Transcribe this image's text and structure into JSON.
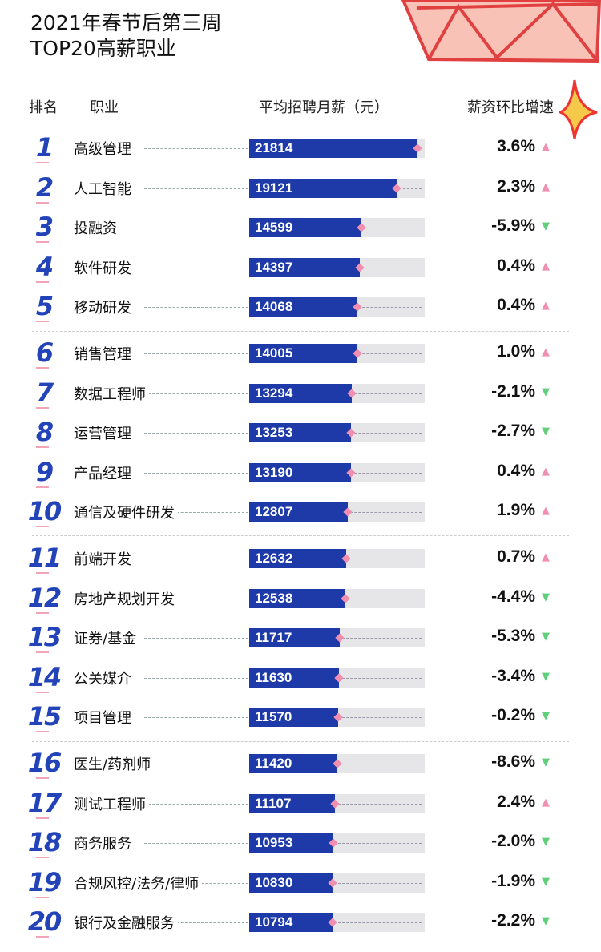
{
  "chart_data": {
    "type": "bar",
    "title": "2021年春节后第三周",
    "subtitle": "TOP20高薪职业",
    "headers": {
      "rank": "排名",
      "job": "职业",
      "salary": "平均招聘月薪（元）",
      "change": "薪资环比增速"
    },
    "colors": {
      "bar": "#1e3aa8",
      "track": "#e6e6e8",
      "up": "#f08fb0",
      "down": "#5fcf7a",
      "rank": "#2343b8"
    },
    "rows": [
      {
        "rank": "1",
        "job": "高级管理",
        "salary": 21814,
        "change": "3.6%",
        "dir": "up"
      },
      {
        "rank": "2",
        "job": "人工智能",
        "salary": 19121,
        "change": "2.3%",
        "dir": "up"
      },
      {
        "rank": "3",
        "job": "投融资",
        "salary": 14599,
        "change": "-5.9%",
        "dir": "down"
      },
      {
        "rank": "4",
        "job": "软件研发",
        "salary": 14397,
        "change": "0.4%",
        "dir": "up"
      },
      {
        "rank": "5",
        "job": "移动研发",
        "salary": 14068,
        "change": "0.4%",
        "dir": "up"
      },
      {
        "rank": "6",
        "job": "销售管理",
        "salary": 14005,
        "change": "1.0%",
        "dir": "up"
      },
      {
        "rank": "7",
        "job": "数据工程师",
        "salary": 13294,
        "change": "-2.1%",
        "dir": "down"
      },
      {
        "rank": "8",
        "job": "运营管理",
        "salary": 13253,
        "change": "-2.7%",
        "dir": "down"
      },
      {
        "rank": "9",
        "job": "产品经理",
        "salary": 13190,
        "change": "0.4%",
        "dir": "up"
      },
      {
        "rank": "10",
        "job": "通信及硬件研发",
        "salary": 12807,
        "change": "1.9%",
        "dir": "up"
      },
      {
        "rank": "11",
        "job": "前端开发",
        "salary": 12632,
        "change": "0.7%",
        "dir": "up"
      },
      {
        "rank": "12",
        "job": "房地产规划开发",
        "salary": 12538,
        "change": "-4.4%",
        "dir": "down"
      },
      {
        "rank": "13",
        "job": "证券/基金",
        "salary": 11717,
        "change": "-5.3%",
        "dir": "down"
      },
      {
        "rank": "14",
        "job": "公关媒介",
        "salary": 11630,
        "change": "-3.4%",
        "dir": "down"
      },
      {
        "rank": "15",
        "job": "项目管理",
        "salary": 11570,
        "change": "-0.2%",
        "dir": "down"
      },
      {
        "rank": "16",
        "job": "医生/药剂师",
        "salary": 11420,
        "change": "-8.6%",
        "dir": "down"
      },
      {
        "rank": "17",
        "job": "测试工程师",
        "salary": 11107,
        "change": "2.4%",
        "dir": "up"
      },
      {
        "rank": "18",
        "job": "商务服务",
        "salary": 10953,
        "change": "-2.0%",
        "dir": "down"
      },
      {
        "rank": "19",
        "job": "合规风控/法务/律师",
        "salary": 10830,
        "change": "-1.9%",
        "dir": "down"
      },
      {
        "rank": "20",
        "job": "银行及金融服务",
        "salary": 10794,
        "change": "-2.2%",
        "dir": "down"
      }
    ]
  }
}
